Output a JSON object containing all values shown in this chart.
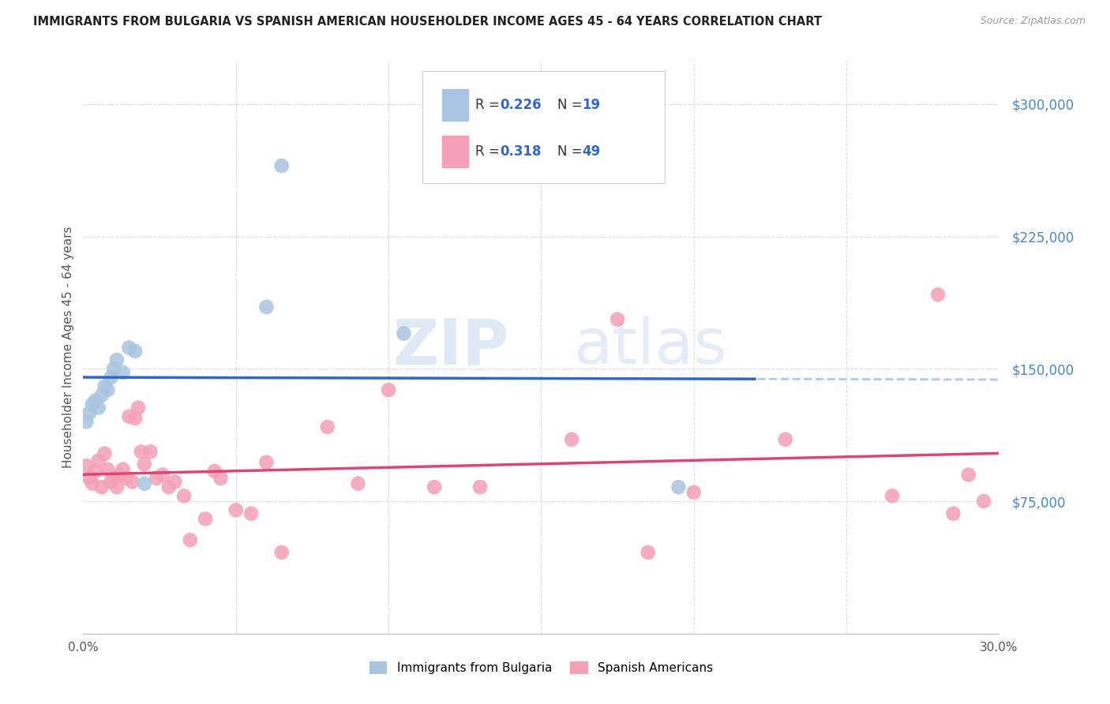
{
  "title": "IMMIGRANTS FROM BULGARIA VS SPANISH AMERICAN HOUSEHOLDER INCOME AGES 45 - 64 YEARS CORRELATION CHART",
  "source": "Source: ZipAtlas.com",
  "ylabel": "Householder Income Ages 45 - 64 years",
  "xlim": [
    0.0,
    0.3
  ],
  "ylim": [
    0,
    325000
  ],
  "yticks": [
    75000,
    150000,
    225000,
    300000
  ],
  "ytick_labels": [
    "$75,000",
    "$150,000",
    "$225,000",
    "$300,000"
  ],
  "color_bulgaria": "#a8c4e0",
  "color_spanish": "#f4a0b5",
  "color_line_bulgaria": "#3366cc",
  "color_line_spanish": "#dd4477",
  "color_line_bulgaria_dashed": "#a8c4e0",
  "watermark_zip": "ZIP",
  "watermark_atlas": "atlas",
  "bg_color": "#ffffff",
  "grid_color": "#dddddd",
  "bulgaria_x": [
    0.001,
    0.002,
    0.003,
    0.004,
    0.005,
    0.006,
    0.007,
    0.008,
    0.009,
    0.01,
    0.011,
    0.013,
    0.015,
    0.017,
    0.02,
    0.06,
    0.065,
    0.105,
    0.195
  ],
  "bulgaria_y": [
    120000,
    125000,
    130000,
    132000,
    128000,
    135000,
    140000,
    138000,
    145000,
    150000,
    155000,
    148000,
    162000,
    160000,
    85000,
    185000,
    265000,
    170000,
    83000
  ],
  "spanish_x": [
    0.001,
    0.002,
    0.003,
    0.004,
    0.005,
    0.006,
    0.007,
    0.008,
    0.009,
    0.01,
    0.011,
    0.012,
    0.013,
    0.014,
    0.015,
    0.016,
    0.017,
    0.018,
    0.019,
    0.02,
    0.022,
    0.024,
    0.026,
    0.028,
    0.03,
    0.033,
    0.035,
    0.04,
    0.043,
    0.045,
    0.05,
    0.055,
    0.06,
    0.065,
    0.08,
    0.09,
    0.1,
    0.115,
    0.13,
    0.16,
    0.175,
    0.185,
    0.2,
    0.23,
    0.265,
    0.28,
    0.285,
    0.29,
    0.295
  ],
  "spanish_y": [
    95000,
    88000,
    85000,
    92000,
    98000,
    83000,
    102000,
    93000,
    86000,
    88000,
    83000,
    90000,
    93000,
    88000,
    123000,
    86000,
    122000,
    128000,
    103000,
    96000,
    103000,
    88000,
    90000,
    83000,
    86000,
    78000,
    53000,
    65000,
    92000,
    88000,
    70000,
    68000,
    97000,
    46000,
    117000,
    85000,
    138000,
    83000,
    83000,
    110000,
    178000,
    46000,
    80000,
    110000,
    78000,
    192000,
    68000,
    90000,
    75000
  ]
}
